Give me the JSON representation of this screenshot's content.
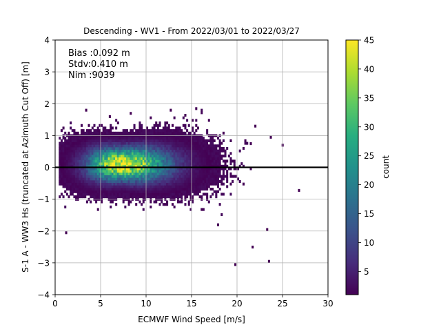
{
  "chart_data": {
    "type": "heatmap",
    "title": "Descending - WV1 - From 2022/03/01 to 2022/03/27",
    "xlabel": "ECMWF Wind Speed [m/s]",
    "ylabel": "S-1 A - WW3 Hs (truncated at Azimuth Cut Off) [m]",
    "xlim": [
      0,
      30
    ],
    "ylim": [
      -4,
      4
    ],
    "x_ticks": [
      "0",
      "5",
      "10",
      "15",
      "20",
      "25",
      "30"
    ],
    "y_ticks": [
      "−4",
      "−3",
      "−2",
      "−1",
      "0",
      "1",
      "2",
      "3",
      "4"
    ],
    "grid": true,
    "zero_line_y": 0,
    "stats": {
      "bias": "Bias :0.092 m",
      "stdv": "Stdv:0.410 m",
      "nim": "Nim :9039"
    },
    "colorbar": {
      "label": "count",
      "min": 1,
      "max": 45,
      "ticks": [
        "5",
        "10",
        "15",
        "20",
        "25",
        "30",
        "35",
        "40",
        "45"
      ],
      "colormap": "viridis"
    },
    "density_model": {
      "peak_count": 45,
      "center_x": 7.2,
      "center_y": 0.1,
      "spread_x": 3.2,
      "spread_y": 0.33,
      "tail_spread_x": 3.6,
      "data_x_range": [
        0.5,
        27
      ],
      "data_y_range": [
        -2.1,
        1.9
      ]
    },
    "outliers": [
      [
        1.2,
        -2.05
      ],
      [
        19.8,
        -3.05
      ],
      [
        23.5,
        -2.95
      ],
      [
        21.7,
        -2.5
      ],
      [
        23.3,
        -1.95
      ],
      [
        26.8,
        -0.72
      ],
      [
        25.0,
        0.7
      ],
      [
        23.7,
        0.95
      ],
      [
        21.5,
        0.75
      ],
      [
        22.0,
        1.3
      ],
      [
        17.9,
        -1.8
      ],
      [
        3.4,
        1.8
      ],
      [
        6.0,
        1.6
      ],
      [
        8.3,
        1.7
      ],
      [
        12.7,
        1.8
      ],
      [
        15.5,
        1.85
      ]
    ]
  }
}
